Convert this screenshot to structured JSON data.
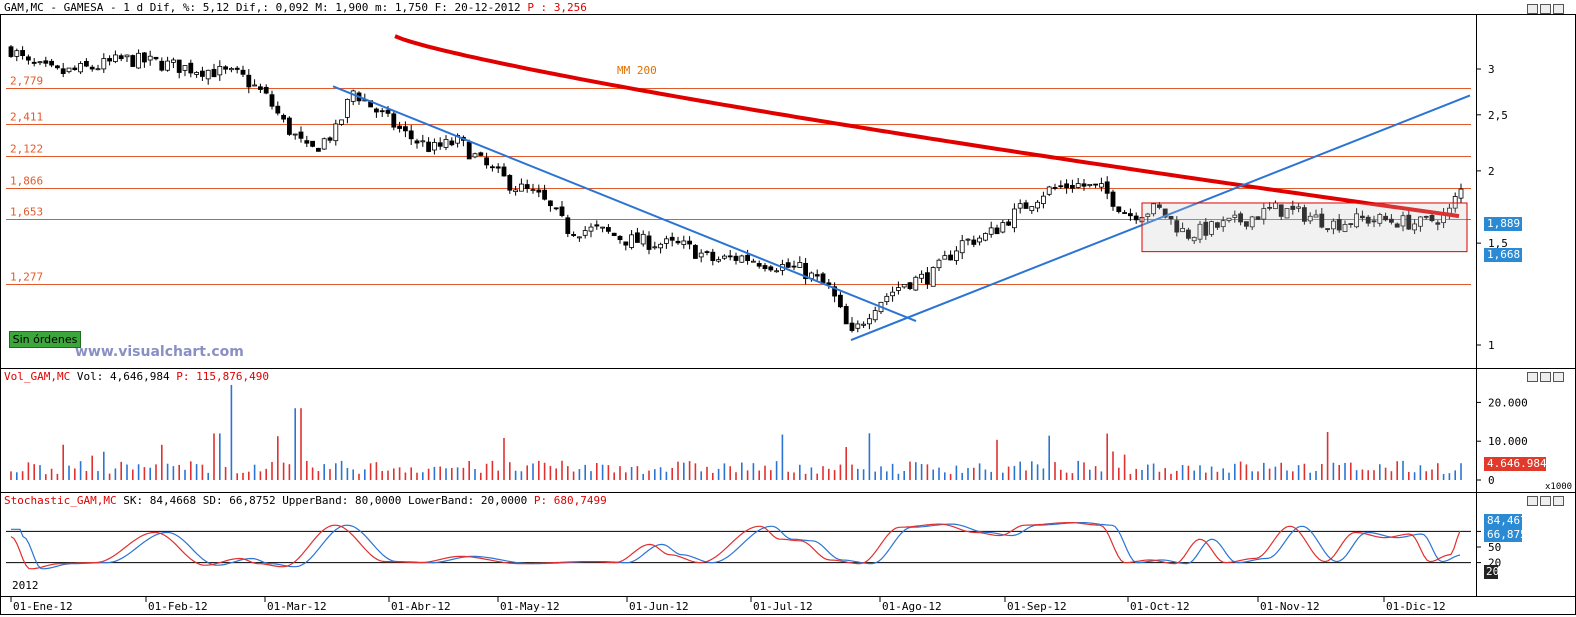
{
  "header": {
    "symbol": "GAM,MC - GAMESA - ",
    "period": "1 d",
    "dif_pct_label": "Dif, %: ",
    "dif_pct": "5,12",
    "dif_label": "Dif,: ",
    "dif": "0,092",
    "max_label": "M: ",
    "max": "1,900",
    "min_label": "m: ",
    "min": "1,750",
    "date_label": "F: ",
    "date": "20-12-2012",
    "p_label": "P : ",
    "p": "3,256"
  },
  "volume_header": {
    "name": "Vol_GAM,MC",
    "vol_label": "Vol: ",
    "vol": "4,646,984",
    "p_label": "P: ",
    "p": "115,876,490"
  },
  "stoch_header": {
    "name": "Stochastic_GAM,MC",
    "sk_label": "SK: ",
    "sk": "84,4668",
    "sd_label": "SD: ",
    "sd": "66,8752",
    "upper_label": "UpperBand: ",
    "upper": "80,0000",
    "lower_label": "LowerBand: ",
    "lower": "20,0000",
    "p_label": "P: ",
    "p": "680,7499"
  },
  "sin_ordenes": "Sin órdenes",
  "watermark": "www.visualchart.com",
  "year_label": "2012",
  "volume_unit": "x1000",
  "badges": {
    "last_close": "1,889",
    "mm200": "1,668",
    "volume": "4.646.984",
    "sk": "84,467",
    "sd": "66,875",
    "lower_band": "20"
  },
  "colors": {
    "up": "#ffffff",
    "down": "#000000",
    "mm200": "#e00000",
    "trendline": "#2b74d4",
    "hline": "#e25a2a",
    "vol_blue": "#2b74d4",
    "vol_red": "#e03030",
    "stoch_sk": "#e03030",
    "stoch_sd": "#2b74d4",
    "badge_blue": "#2b8ad4",
    "badge_red": "#e23a2a"
  },
  "chart_data": [
    {
      "type": "candlestick",
      "x": [
        "01-Ene-12",
        "01-Feb-12",
        "01-Mar-12",
        "01-Abr-12",
        "01-May-12",
        "01-Jun-12",
        "01-Jul-12",
        "01-Ago-12",
        "01-Sep-12",
        "01-Oct-12",
        "01-Nov-12",
        "01-Dic-12"
      ],
      "y_ticks": [
        "3",
        "2,5",
        "2",
        "1,5",
        "1"
      ],
      "ylim": [
        0.9,
        3.3
      ],
      "log_scale": true,
      "price_path": [
        [
          "01-Ene-12",
          3.25
        ],
        [
          "05-Ene-12",
          3.05
        ],
        [
          "12-Ene-12",
          2.95
        ],
        [
          "20-Ene-12",
          3.02
        ],
        [
          "27-Ene-12",
          3.12
        ],
        [
          "03-Feb-12",
          3.08
        ],
        [
          "10-Feb-12",
          3.02
        ],
        [
          "17-Feb-12",
          2.98
        ],
        [
          "24-Feb-12",
          2.92
        ],
        [
          "01-Mar-12",
          2.7
        ],
        [
          "06-Mar-12",
          2.4
        ],
        [
          "12-Mar-12",
          2.15
        ],
        [
          "19-Mar-12",
          2.35
        ],
        [
          "23-Mar-12",
          2.75
        ],
        [
          "30-Mar-12",
          2.5
        ],
        [
          "06-Abr-12",
          2.3
        ],
        [
          "13-Abr-12",
          2.18
        ],
        [
          "20-Abr-12",
          2.25
        ],
        [
          "27-Abr-12",
          2.05
        ],
        [
          "04-May-12",
          1.9
        ],
        [
          "11-May-12",
          1.8
        ],
        [
          "18-May-12",
          1.58
        ],
        [
          "25-May-12",
          1.58
        ],
        [
          "01-Jun-12",
          1.52
        ],
        [
          "08-Jun-12",
          1.5
        ],
        [
          "15-Jun-12",
          1.48
        ],
        [
          "22-Jun-12",
          1.4
        ],
        [
          "29-Jun-12",
          1.42
        ],
        [
          "06-Jul-12",
          1.38
        ],
        [
          "13-Jul-12",
          1.35
        ],
        [
          "20-Jul-12",
          1.25
        ],
        [
          "25-Jul-12",
          1.03
        ],
        [
          "31-Jul-12",
          1.18
        ],
        [
          "07-Ago-12",
          1.28
        ],
        [
          "14-Ago-12",
          1.32
        ],
        [
          "21-Ago-12",
          1.5
        ],
        [
          "28-Ago-12",
          1.55
        ],
        [
          "04-Sep-12",
          1.7
        ],
        [
          "11-Sep-12",
          1.85
        ],
        [
          "18-Sep-12",
          1.9
        ],
        [
          "25-Sep-12",
          1.85
        ],
        [
          "01-Oct-12",
          1.68
        ],
        [
          "08-Oct-12",
          1.72
        ],
        [
          "15-Oct-12",
          1.55
        ],
        [
          "22-Oct-12",
          1.6
        ],
        [
          "29-Oct-12",
          1.65
        ],
        [
          "05-Nov-12",
          1.72
        ],
        [
          "12-Nov-12",
          1.68
        ],
        [
          "19-Nov-12",
          1.62
        ],
        [
          "26-Nov-12",
          1.65
        ],
        [
          "03-Dic-12",
          1.64
        ],
        [
          "10-Dic-12",
          1.62
        ],
        [
          "17-Dic-12",
          1.68
        ],
        [
          "20-Dic-12",
          1.85
        ]
      ],
      "horizontal_levels": [
        "2,779",
        "2,411",
        "2,122",
        "1,866",
        "1,653",
        "1,277"
      ],
      "annotations": [
        "MM 200"
      ],
      "last_close": "1,889",
      "mm200_value": "1,668"
    },
    {
      "type": "bar",
      "series": [
        {
          "values": "daily volume"
        }
      ],
      "y_ticks": [
        "20.000",
        "10.000",
        "0"
      ],
      "ylim": [
        0,
        25000
      ],
      "last": "4.646.984"
    },
    {
      "type": "line",
      "y_ticks": [
        "80",
        "50",
        "20"
      ],
      "ylim": [
        0,
        100
      ],
      "upper_band": 80,
      "lower_band": 20,
      "sk_last": 84.467,
      "sd_last": 66.875
    }
  ]
}
